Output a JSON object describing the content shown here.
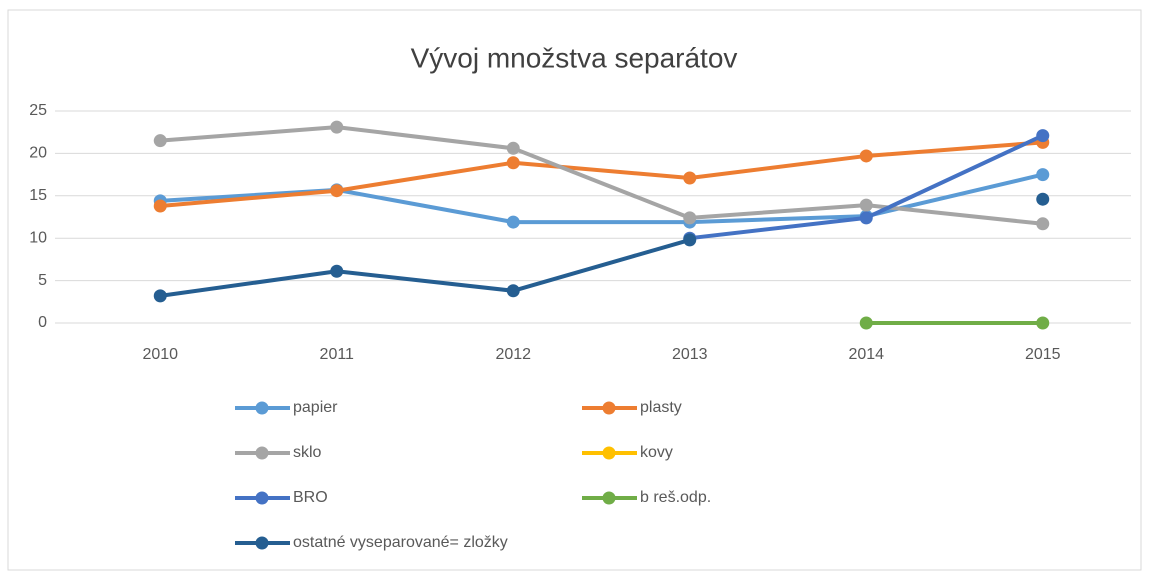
{
  "chart_data": {
    "type": "line",
    "title": "Vývoj množstva separátov",
    "categories": [
      "2010",
      "2011",
      "2012",
      "2013",
      "2014",
      "2015"
    ],
    "ylim": [
      0,
      25
    ],
    "yticks": [
      0,
      5,
      10,
      15,
      20,
      25
    ],
    "grid": true,
    "legend": "bottom",
    "series": [
      {
        "name": "papier",
        "color": "#5b9bd5",
        "values": [
          14.4,
          15.7,
          11.9,
          11.9,
          12.6,
          17.5
        ]
      },
      {
        "name": "plasty",
        "color": "#ed7d31",
        "values": [
          13.8,
          15.6,
          18.9,
          17.1,
          19.7,
          21.3
        ]
      },
      {
        "name": "sklo",
        "color": "#a5a5a5",
        "values": [
          21.5,
          23.1,
          20.6,
          12.4,
          13.9,
          11.7
        ]
      },
      {
        "name": "kovy",
        "color": "#ffc000",
        "values": [
          null,
          null,
          null,
          null,
          null,
          null
        ]
      },
      {
        "name": "BRO",
        "color": "#4472c4",
        "values": [
          null,
          null,
          null,
          10.0,
          12.4,
          22.1
        ]
      },
      {
        "name": "b reš.odp.",
        "color": "#70ad47",
        "values": [
          null,
          null,
          null,
          null,
          0,
          0
        ]
      },
      {
        "name": "ostatné vyseparované= zložky",
        "color": "#255e91",
        "values": [
          3.2,
          6.1,
          3.8,
          9.8,
          null,
          14.6
        ]
      }
    ]
  }
}
